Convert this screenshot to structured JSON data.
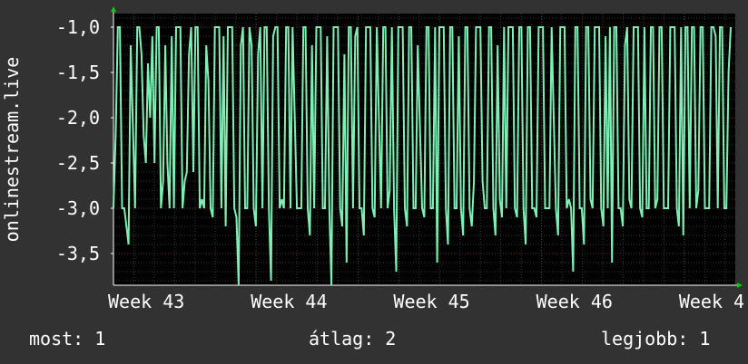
{
  "colors": {
    "background": "#323232",
    "plot_background": "#000000",
    "grid_minor": "#333333",
    "grid_major": "#5a2a2a",
    "line": "#7ef0b4",
    "axis_arrow": "#00cc00"
  },
  "footer": {
    "now_label": "most:",
    "now_value": "1",
    "avg_label": "átlag:",
    "avg_value": "2",
    "best_label": "legjobb:",
    "best_value": "1"
  },
  "chart_data": {
    "type": "line",
    "title": "",
    "ylabel": "onlinestream.live",
    "xlabel": "",
    "ylim": [
      -3.85,
      -0.85
    ],
    "yticks": [
      -1.0,
      -1.5,
      -2.0,
      -2.5,
      -3.0,
      -3.5
    ],
    "ytick_labels": [
      "-1,0",
      "-1,5",
      "-2,0",
      "-2,5",
      "-3,0",
      "-3,5"
    ],
    "xticks": [
      {
        "label": "Week 43",
        "x": 0
      },
      {
        "label": "Week 44",
        "x": 7
      },
      {
        "label": "Week 45",
        "x": 14
      },
      {
        "label": "Week 46",
        "x": 21
      },
      {
        "label": "Week 4",
        "x": 28
      }
    ],
    "xlim": [
      0,
      30.5
    ],
    "grid": true,
    "series": [
      {
        "values": [
          -3.0,
          -2.2,
          -1.0,
          -1.0,
          -3.0,
          -3.0,
          -3.2,
          -3.4,
          -1.2,
          -2.1,
          -3.0,
          -1.0,
          -1.0,
          -1.3,
          -2.2,
          -2.5,
          -1.4,
          -2.0,
          -1.1,
          -2.5,
          -1.0,
          -1.0,
          -3.0,
          -2.7,
          -1.2,
          -2.5,
          -3.0,
          -1.1,
          -3.0,
          -1.0,
          -1.0,
          -1.0,
          -3.0,
          -2.7,
          -2.6,
          -1.3,
          -1.0,
          -2.6,
          -1.0,
          -1.0,
          -3.0,
          -2.9,
          -3.0,
          -1.2,
          -1.6,
          -3.0,
          -3.1,
          -1.0,
          -1.0,
          -1.0,
          -3.0,
          -1.1,
          -3.2,
          -1.0,
          -1.0,
          -1.0,
          -3.0,
          -3.1,
          -3.85,
          -1.2,
          -1.0,
          -3.0,
          -3.0,
          -1.0,
          -1.2,
          -3.0,
          -3.2,
          -1.3,
          -1.0,
          -3.0,
          -1.0,
          -1.0,
          -3.0,
          -3.8,
          -1.1,
          -1.0,
          -1.0,
          -3.0,
          -2.9,
          -3.0,
          -1.0,
          -1.0,
          -3.0,
          -1.0,
          -2.0,
          -3.0,
          -3.0,
          -3.0,
          -1.0,
          -1.0,
          -3.0,
          -3.3,
          -1.2,
          -3.0,
          -1.0,
          -1.0,
          -1.0,
          -3.0,
          -3.0,
          -1.1,
          -3.0,
          -3.85,
          -1.0,
          -1.0,
          -1.0,
          -3.0,
          -3.2,
          -1.3,
          -3.6,
          -1.0,
          -1.0,
          -3.0,
          -1.1,
          -1.0,
          -3.0,
          -3.0,
          -3.3,
          -1.0,
          -1.0,
          -1.0,
          -3.0,
          -3.1,
          -1.0,
          -2.0,
          -3.0,
          -1.0,
          -1.0,
          -3.0,
          -2.8,
          -1.0,
          -3.0,
          -3.7,
          -1.0,
          -1.0,
          -1.0,
          -3.0,
          -3.2,
          -1.0,
          -1.0,
          -3.0,
          -3.0,
          -1.2,
          -2.1,
          -3.0,
          -3.1,
          -1.0,
          -1.0,
          -3.0,
          -3.0,
          -1.0,
          -3.6,
          -1.0,
          -1.0,
          -1.0,
          -3.0,
          -3.4,
          -1.0,
          -1.0,
          -3.0,
          -3.0,
          -1.1,
          -3.0,
          -3.3,
          -1.0,
          -1.0,
          -3.0,
          -3.2,
          -2.7,
          -1.0,
          -1.0,
          -1.0,
          -2.7,
          -3.0,
          -3.0,
          -1.0,
          -1.0,
          -3.0,
          -3.3,
          -1.2,
          -2.9,
          -3.1,
          -1.0,
          -3.0,
          -1.0,
          -1.0,
          -1.0,
          -3.0,
          -3.1,
          -1.0,
          -1.0,
          -3.0,
          -3.4,
          -1.0,
          -1.0,
          -3.0,
          -3.0,
          -3.1,
          -1.0,
          -1.0,
          -1.0,
          -3.0,
          -3.0,
          -3.0,
          -1.0,
          -2.0,
          -3.0,
          -3.3,
          -1.0,
          -1.0,
          -1.0,
          -3.0,
          -2.9,
          -3.0,
          -3.7,
          -1.0,
          -1.0,
          -3.0,
          -3.0,
          -3.4,
          -1.0,
          -1.0,
          -2.9,
          -3.0,
          -1.0,
          -1.0,
          -1.0,
          -3.0,
          -3.2,
          -1.1,
          -3.0,
          -1.0,
          -3.6,
          -1.0,
          -1.0,
          -3.0,
          -3.0,
          -3.2,
          -1.2,
          -1.0,
          -2.9,
          -3.0,
          -1.0,
          -1.0,
          -1.0,
          -3.0,
          -3.1,
          -1.0,
          -3.0,
          -3.0,
          -1.0,
          -1.0,
          -3.0,
          -2.9,
          -1.0,
          -1.0,
          -3.0,
          -3.0,
          -3.0,
          -1.0,
          -1.0,
          -1.0,
          -3.0,
          -3.2,
          -1.0,
          -3.3,
          -1.0,
          -1.0,
          -3.0,
          -1.0,
          -1.0,
          -3.0,
          -2.8,
          -1.0,
          -1.0,
          -3.0,
          -3.0,
          -3.0,
          -1.0,
          -1.0,
          -1.1,
          -3.0,
          -1.0,
          -1.0,
          -3.0,
          -3.0,
          -1.5,
          -1.0
        ]
      }
    ]
  }
}
